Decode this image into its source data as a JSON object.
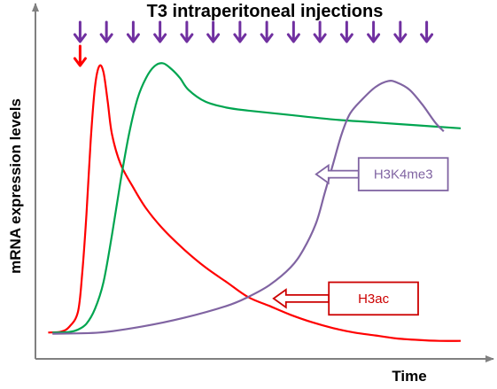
{
  "chart_data": {
    "type": "line",
    "title": "T3 intraperitoneal injections",
    "xlabel": "Time",
    "ylabel": "mRNA expression levels",
    "xlim": [
      0,
      100
    ],
    "ylim": [
      0,
      100
    ],
    "injections": {
      "count": 14,
      "x": [
        10.5,
        16.7,
        23.0,
        29.3,
        35.6,
        41.8,
        48.1,
        54.4,
        60.7,
        66.9,
        73.2,
        79.5,
        85.8,
        92.0
      ],
      "arrow_color": "#7030A0",
      "first_marker_x": 10.5,
      "first_marker_color": "#FF0000"
    },
    "series": [
      {
        "color": "#FF0000",
        "points": [
          [
            3,
            5
          ],
          [
            6,
            5.3
          ],
          [
            8,
            7
          ],
          [
            10,
            12
          ],
          [
            11,
            25
          ],
          [
            12,
            45
          ],
          [
            13,
            70
          ],
          [
            14,
            88
          ],
          [
            15,
            95
          ],
          [
            16,
            93
          ],
          [
            17,
            83
          ],
          [
            18,
            72
          ],
          [
            20,
            62
          ],
          [
            23,
            54
          ],
          [
            26,
            47
          ],
          [
            30,
            40
          ],
          [
            35,
            33
          ],
          [
            40,
            27
          ],
          [
            45,
            22
          ],
          [
            50,
            17
          ],
          [
            55,
            14
          ],
          [
            60,
            11
          ],
          [
            65,
            8.5
          ],
          [
            70,
            6.5
          ],
          [
            75,
            5
          ],
          [
            80,
            4
          ],
          [
            85,
            3
          ],
          [
            90,
            2.5
          ],
          [
            95,
            2.2
          ],
          [
            100,
            2.2
          ]
        ]
      },
      {
        "color": "#00A550",
        "points": [
          [
            4,
            5
          ],
          [
            8,
            5.2
          ],
          [
            10,
            6
          ],
          [
            12,
            8
          ],
          [
            14,
            13
          ],
          [
            16,
            22
          ],
          [
            18,
            38
          ],
          [
            20,
            56
          ],
          [
            22,
            72
          ],
          [
            24,
            84
          ],
          [
            26,
            91
          ],
          [
            28,
            95
          ],
          [
            30,
            96
          ],
          [
            32,
            94
          ],
          [
            34,
            91
          ],
          [
            36,
            87
          ],
          [
            40,
            83
          ],
          [
            45,
            81
          ],
          [
            50,
            80
          ],
          [
            60,
            78.5
          ],
          [
            70,
            77
          ],
          [
            80,
            76
          ],
          [
            90,
            75
          ],
          [
            100,
            74
          ]
        ]
      },
      {
        "color": "#8064A2",
        "points": [
          [
            4,
            4.6
          ],
          [
            15,
            5
          ],
          [
            25,
            7
          ],
          [
            35,
            10
          ],
          [
            45,
            14
          ],
          [
            50,
            17
          ],
          [
            55,
            21
          ],
          [
            60,
            27
          ],
          [
            63,
            33
          ],
          [
            66,
            42
          ],
          [
            68,
            52
          ],
          [
            70,
            62
          ],
          [
            72,
            72
          ],
          [
            74,
            79
          ],
          [
            77,
            84
          ],
          [
            80,
            88
          ],
          [
            83,
            90
          ],
          [
            85,
            89.5
          ],
          [
            88,
            87
          ],
          [
            91,
            82
          ],
          [
            94,
            76
          ],
          [
            96,
            73
          ]
        ]
      }
    ],
    "annotations": [
      {
        "text": "H3K4me3",
        "color": "#8064A2",
        "box_x": [
          76,
          97
        ],
        "box_y": [
          53,
          64
        ],
        "arrow_tip": [
          66,
          58.5
        ]
      },
      {
        "text": "H3ac",
        "color": "#CC0000",
        "box_x": [
          69,
          90
        ],
        "box_y": [
          11,
          22
        ],
        "arrow_tip": [
          56,
          16.5
        ]
      }
    ]
  }
}
